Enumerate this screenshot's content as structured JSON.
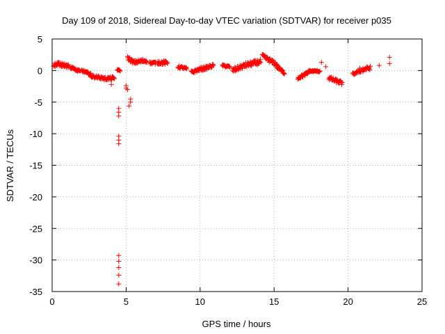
{
  "chart_data": {
    "type": "scatter",
    "title": "Day 109 of 2018, Sidereal Day-to-day VTEC variation (SDTVAR) for receiver p035",
    "xlabel": "GPS time / hours",
    "ylabel": "SDTVAR / TECUs",
    "xlim": [
      0,
      25
    ],
    "ylim": [
      -35,
      5
    ],
    "xticks": [
      0,
      5,
      10,
      15,
      20,
      25
    ],
    "yticks": [
      5,
      0,
      -5,
      -10,
      -15,
      -20,
      -25,
      -30,
      -35
    ],
    "grid": true,
    "marker": "+",
    "color": "#ff0000",
    "segments": [
      {
        "x0": 0.1,
        "x1": 1.1,
        "a": 1.0,
        "b": 0.8,
        "amp": 0.7
      },
      {
        "x0": 1.2,
        "x1": 1.9,
        "a": 0.6,
        "b": -0.2,
        "amp": 0.5
      },
      {
        "x0": 2.0,
        "x1": 2.6,
        "a": 0.0,
        "b": -0.6,
        "amp": 0.4
      },
      {
        "x0": 2.6,
        "x1": 3.5,
        "a": -0.9,
        "b": -1.2,
        "amp": 0.4
      },
      {
        "x0": 3.5,
        "x1": 4.2,
        "a": -1.3,
        "b": -1.2,
        "amp": 0.5
      },
      {
        "x0": 4.4,
        "x1": 4.6,
        "a": 0.1,
        "b": 0.0,
        "amp": 0.2
      },
      {
        "x0": 5.1,
        "x1": 5.5,
        "a": 2.0,
        "b": 1.3,
        "amp": 0.6
      },
      {
        "x0": 5.5,
        "x1": 6.4,
        "a": 1.3,
        "b": 1.6,
        "amp": 0.6
      },
      {
        "x0": 6.6,
        "x1": 7.0,
        "a": 1.2,
        "b": 1.2,
        "amp": 0.4
      },
      {
        "x0": 7.1,
        "x1": 7.8,
        "a": 1.3,
        "b": 1.2,
        "amp": 0.6
      },
      {
        "x0": 8.5,
        "x1": 9.1,
        "a": 0.6,
        "b": 0.3,
        "amp": 0.4
      },
      {
        "x0": 9.4,
        "x1": 10.1,
        "a": -0.3,
        "b": 0.3,
        "amp": 0.5
      },
      {
        "x0": 10.1,
        "x1": 10.9,
        "a": 0.2,
        "b": 0.8,
        "amp": 0.5
      },
      {
        "x0": 11.5,
        "x1": 12.0,
        "a": 0.8,
        "b": 0.6,
        "amp": 0.3
      },
      {
        "x0": 12.2,
        "x1": 13.0,
        "a": 0.0,
        "b": 0.8,
        "amp": 0.7
      },
      {
        "x0": 13.0,
        "x1": 14.1,
        "a": 0.8,
        "b": 1.4,
        "amp": 0.8
      },
      {
        "x0": 14.2,
        "x1": 15.2,
        "a": 2.3,
        "b": 0.9,
        "amp": 0.7
      },
      {
        "x0": 15.2,
        "x1": 15.7,
        "a": 0.6,
        "b": -0.4,
        "amp": 0.5
      },
      {
        "x0": 16.6,
        "x1": 17.3,
        "a": -1.2,
        "b": -0.4,
        "amp": 0.5
      },
      {
        "x0": 17.3,
        "x1": 18.1,
        "a": -0.1,
        "b": -0.1,
        "amp": 0.3
      },
      {
        "x0": 18.7,
        "x1": 19.6,
        "a": -1.2,
        "b": -2.0,
        "amp": 0.6
      },
      {
        "x0": 20.3,
        "x1": 20.9,
        "a": -0.6,
        "b": 0.0,
        "amp": 0.4
      },
      {
        "x0": 21.0,
        "x1": 21.5,
        "a": 0.2,
        "b": 0.4,
        "amp": 0.6
      }
    ],
    "points": [
      [
        4.5,
        -6.0
      ],
      [
        4.5,
        -6.6
      ],
      [
        4.5,
        -7.2
      ],
      [
        4.5,
        -10.4
      ],
      [
        4.5,
        -11.0
      ],
      [
        4.5,
        -11.6
      ],
      [
        4.5,
        -29.3
      ],
      [
        4.5,
        -30.2
      ],
      [
        4.5,
        -31.2
      ],
      [
        4.5,
        -32.4
      ],
      [
        4.5,
        -33.8
      ],
      [
        5.0,
        -2.4
      ],
      [
        5.0,
        -2.8
      ],
      [
        5.1,
        -3.0
      ],
      [
        5.3,
        -4.5
      ],
      [
        5.3,
        -5.0
      ],
      [
        5.2,
        -5.6
      ],
      [
        4.0,
        -2.2
      ],
      [
        4.0,
        -1.5
      ],
      [
        12.0,
        0.5
      ],
      [
        18.2,
        1.3
      ],
      [
        18.5,
        0.6
      ],
      [
        22.1,
        0.8
      ],
      [
        22.8,
        2.1
      ],
      [
        22.8,
        1.1
      ],
      [
        20.8,
        0.4
      ],
      [
        21.0,
        -0.2
      ]
    ]
  }
}
